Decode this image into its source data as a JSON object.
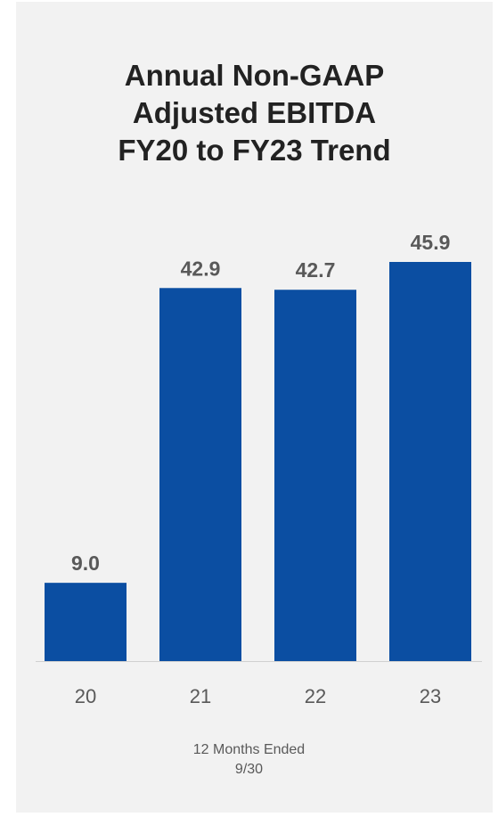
{
  "colors": {
    "background": "#f2f2f2",
    "bar": "#0b4ea2",
    "value_label": "#595959",
    "tick_label": "#595959",
    "title": "#222222",
    "axis_line": "#d0d0d0"
  },
  "chart_data": {
    "type": "bar",
    "title_lines": [
      "Annual Non-GAAP",
      "Adjusted EBITDA",
      "FY20 to FY23 Trend"
    ],
    "categories": [
      "20",
      "21",
      "22",
      "23"
    ],
    "values": [
      9.0,
      42.9,
      42.7,
      45.9
    ],
    "value_labels": [
      "9.0",
      "42.9",
      "42.7",
      "45.9"
    ],
    "xlabel_lines": [
      "12 Months Ended",
      "9/30"
    ],
    "ylabel": "",
    "ylim": [
      0,
      45.9
    ],
    "grid": false,
    "legend": "none"
  }
}
